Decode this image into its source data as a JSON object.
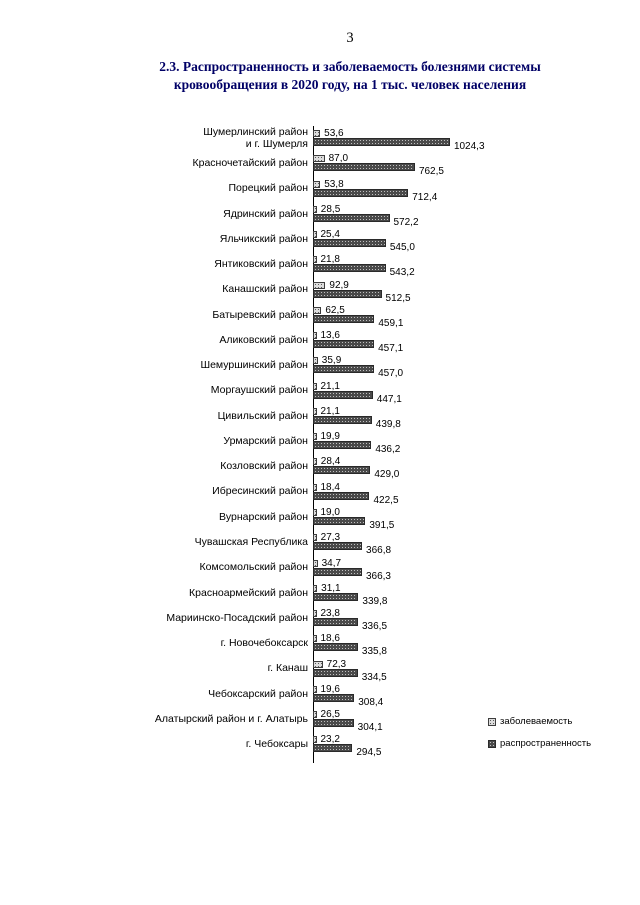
{
  "page": {
    "number": "3",
    "title_line1": "2.3. Распространенность и заболеваемость болезнями системы",
    "title_line2": "кровообращения в 2020 году, на 1 тыс. человек населения"
  },
  "chart_data": {
    "type": "bar",
    "orientation": "horizontal",
    "title": "2.3. Распространенность и заболеваемость болезнями системы кровообращения в 2020 году, на 1 тыс. человек населения",
    "xlabel": "",
    "ylabel": "",
    "xlim": [
      0,
      1100
    ],
    "grid": false,
    "legend_position": "bottom-right",
    "value_labels": true,
    "value_label_decimal_separator": ",",
    "categories": [
      "Шумерлинский район\nи г. Шумерля",
      "Красночетайский район",
      "Порецкий район",
      "Ядринский район",
      "Яльчикский район",
      "Янтиковский район",
      "Канашский район",
      "Батыревский район",
      "Аликовский район",
      "Шемуршинский район",
      "Моргаушский район",
      "Цивильский район",
      "Урмарский район",
      "Козловский район",
      "Ибресинский район",
      "Вурнарский район",
      "Чувашская Республика",
      "Комсомольский район",
      "Красноармейский район",
      "Мариинско-Посадский район",
      "г. Новочебоксарск",
      "г. Канаш",
      "Чебоксарский район",
      "Алатырский район и г. Алатырь",
      "г. Чебоксары"
    ],
    "series": [
      {
        "name": "заболеваемость",
        "color": "#dcdcdc",
        "pattern": "speckled",
        "values": [
          53.6,
          87.0,
          53.8,
          28.5,
          25.4,
          21.8,
          92.9,
          62.5,
          13.6,
          35.9,
          21.1,
          21.1,
          19.9,
          28.4,
          18.4,
          19.0,
          27.3,
          34.7,
          31.1,
          23.8,
          18.6,
          72.3,
          19.6,
          26.5,
          23.2
        ]
      },
      {
        "name": "распространенность",
        "color": "#4a4a4a",
        "pattern": "speckled",
        "values": [
          1024.3,
          762.5,
          712.4,
          572.2,
          545.0,
          543.2,
          512.5,
          459.1,
          457.1,
          457.0,
          447.1,
          439.8,
          436.2,
          429.0,
          422.5,
          391.5,
          366.8,
          366.3,
          339.8,
          336.5,
          335.8,
          334.5,
          308.4,
          304.1,
          294.5
        ]
      }
    ]
  }
}
